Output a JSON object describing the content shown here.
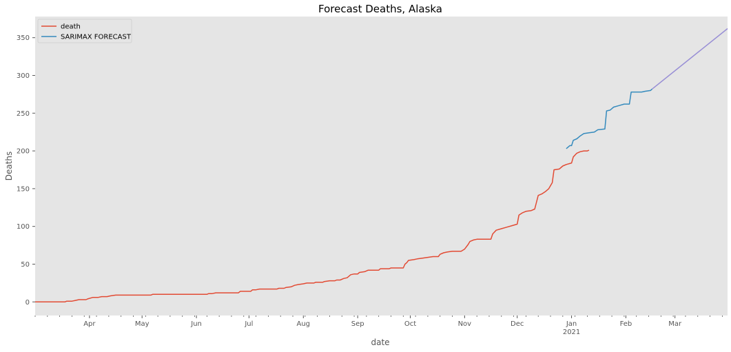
{
  "chart_data": {
    "type": "line",
    "title": "Forecast Deaths, Alaska",
    "xlabel": "date",
    "ylabel": "Deaths",
    "ylim": [
      -18,
      378
    ],
    "xlim": [
      "2020-03-01",
      "2021-03-31"
    ],
    "grid": false,
    "legend_position": "top-left",
    "background_color": "#e5e5e5",
    "y_ticks": [
      0,
      50,
      100,
      150,
      200,
      250,
      300,
      350
    ],
    "x_ticks": [
      {
        "date": "2020-04-01",
        "label": "Apr",
        "sublabel": ""
      },
      {
        "date": "2020-05-01",
        "label": "May",
        "sublabel": ""
      },
      {
        "date": "2020-06-01",
        "label": "Jun",
        "sublabel": ""
      },
      {
        "date": "2020-07-01",
        "label": "Jul",
        "sublabel": ""
      },
      {
        "date": "2020-08-01",
        "label": "Aug",
        "sublabel": ""
      },
      {
        "date": "2020-09-01",
        "label": "Sep",
        "sublabel": ""
      },
      {
        "date": "2020-10-01",
        "label": "Oct",
        "sublabel": ""
      },
      {
        "date": "2020-11-01",
        "label": "Nov",
        "sublabel": ""
      },
      {
        "date": "2020-12-01",
        "label": "Dec",
        "sublabel": ""
      },
      {
        "date": "2021-01-01",
        "label": "Jan",
        "sublabel": "2021"
      },
      {
        "date": "2021-02-01",
        "label": "Feb",
        "sublabel": ""
      },
      {
        "date": "2021-03-01",
        "label": "Mar",
        "sublabel": ""
      }
    ],
    "series": [
      {
        "name": "death",
        "color": "#e24a33",
        "legend": true,
        "points": [
          [
            "2020-03-01",
            0
          ],
          [
            "2020-03-18",
            0
          ],
          [
            "2020-03-19",
            1
          ],
          [
            "2020-03-22",
            1
          ],
          [
            "2020-03-24",
            2
          ],
          [
            "2020-03-26",
            3
          ],
          [
            "2020-03-30",
            3
          ],
          [
            "2020-03-31",
            4
          ],
          [
            "2020-04-03",
            6
          ],
          [
            "2020-04-06",
            6
          ],
          [
            "2020-04-08",
            7
          ],
          [
            "2020-04-11",
            7
          ],
          [
            "2020-04-13",
            8
          ],
          [
            "2020-04-16",
            9
          ],
          [
            "2020-05-06",
            9
          ],
          [
            "2020-05-07",
            10
          ],
          [
            "2020-06-07",
            10
          ],
          [
            "2020-06-08",
            11
          ],
          [
            "2020-06-10",
            11
          ],
          [
            "2020-06-12",
            12
          ],
          [
            "2020-06-25",
            12
          ],
          [
            "2020-06-26",
            14
          ],
          [
            "2020-07-02",
            14
          ],
          [
            "2020-07-03",
            16
          ],
          [
            "2020-07-05",
            16
          ],
          [
            "2020-07-07",
            17
          ],
          [
            "2020-07-17",
            17
          ],
          [
            "2020-07-18",
            18
          ],
          [
            "2020-07-21",
            18
          ],
          [
            "2020-07-22",
            19
          ],
          [
            "2020-07-25",
            20
          ],
          [
            "2020-07-27",
            22
          ],
          [
            "2020-07-29",
            23
          ],
          [
            "2020-08-01",
            24
          ],
          [
            "2020-08-03",
            25
          ],
          [
            "2020-08-07",
            25
          ],
          [
            "2020-08-08",
            26
          ],
          [
            "2020-08-12",
            26
          ],
          [
            "2020-08-13",
            27
          ],
          [
            "2020-08-16",
            28
          ],
          [
            "2020-08-19",
            28
          ],
          [
            "2020-08-20",
            29
          ],
          [
            "2020-08-22",
            29
          ],
          [
            "2020-08-24",
            31
          ],
          [
            "2020-08-26",
            32
          ],
          [
            "2020-08-28",
            36
          ],
          [
            "2020-08-30",
            37
          ],
          [
            "2020-09-01",
            37
          ],
          [
            "2020-09-02",
            39
          ],
          [
            "2020-09-05",
            40
          ],
          [
            "2020-09-07",
            42
          ],
          [
            "2020-09-13",
            42
          ],
          [
            "2020-09-14",
            44
          ],
          [
            "2020-09-19",
            44
          ],
          [
            "2020-09-20",
            45
          ],
          [
            "2020-09-27",
            45
          ],
          [
            "2020-09-28",
            50
          ],
          [
            "2020-09-29",
            52
          ],
          [
            "2020-09-30",
            55
          ],
          [
            "2020-10-03",
            56
          ],
          [
            "2020-10-05",
            57
          ],
          [
            "2020-10-08",
            58
          ],
          [
            "2020-10-11",
            59
          ],
          [
            "2020-10-14",
            60
          ],
          [
            "2020-10-17",
            60
          ],
          [
            "2020-10-18",
            63
          ],
          [
            "2020-10-20",
            65
          ],
          [
            "2020-10-22",
            66
          ],
          [
            "2020-10-25",
            67
          ],
          [
            "2020-10-30",
            67
          ],
          [
            "2020-11-01",
            70
          ],
          [
            "2020-11-03",
            76
          ],
          [
            "2020-11-04",
            80
          ],
          [
            "2020-11-06",
            82
          ],
          [
            "2020-11-08",
            83
          ],
          [
            "2020-11-16",
            83
          ],
          [
            "2020-11-17",
            90
          ],
          [
            "2020-11-19",
            95
          ],
          [
            "2020-11-22",
            97
          ],
          [
            "2020-11-25",
            99
          ],
          [
            "2020-11-28",
            101
          ],
          [
            "2020-12-01",
            103
          ],
          [
            "2020-12-02",
            115
          ],
          [
            "2020-12-04",
            118
          ],
          [
            "2020-12-06",
            120
          ],
          [
            "2020-12-09",
            121
          ],
          [
            "2020-12-11",
            123
          ],
          [
            "2020-12-13",
            141
          ],
          [
            "2020-12-15",
            143
          ],
          [
            "2020-12-17",
            146
          ],
          [
            "2020-12-19",
            150
          ],
          [
            "2020-12-21",
            158
          ],
          [
            "2020-12-22",
            175
          ],
          [
            "2020-12-25",
            176
          ],
          [
            "2020-12-27",
            180
          ],
          [
            "2020-12-29",
            182
          ],
          [
            "2021-01-01",
            184
          ],
          [
            "2021-01-02",
            192
          ],
          [
            "2021-01-04",
            197
          ],
          [
            "2021-01-06",
            199
          ],
          [
            "2021-01-08",
            200
          ],
          [
            "2021-01-10",
            200
          ],
          [
            "2021-01-11",
            201
          ]
        ]
      },
      {
        "name": "SARIMAX FORECAST",
        "color": "#348abd",
        "legend": true,
        "points": [
          [
            "2020-12-29",
            203
          ],
          [
            "2020-12-31",
            207
          ],
          [
            "2021-01-01",
            207
          ],
          [
            "2021-01-02",
            214
          ],
          [
            "2021-01-04",
            216
          ],
          [
            "2021-01-06",
            220
          ],
          [
            "2021-01-08",
            223
          ],
          [
            "2021-01-11",
            224
          ],
          [
            "2021-01-14",
            225
          ],
          [
            "2021-01-16",
            228
          ],
          [
            "2021-01-20",
            229
          ],
          [
            "2021-01-21",
            253
          ],
          [
            "2021-01-23",
            254
          ],
          [
            "2021-01-25",
            258
          ],
          [
            "2021-01-28",
            260
          ],
          [
            "2021-01-31",
            262
          ],
          [
            "2021-02-03",
            262
          ],
          [
            "2021-02-04",
            278
          ],
          [
            "2021-02-08",
            278
          ],
          [
            "2021-02-10",
            278
          ],
          [
            "2021-02-12",
            279
          ],
          [
            "2021-02-15",
            280
          ],
          [
            "2021-02-16",
            282
          ]
        ]
      },
      {
        "name": "",
        "color": "#988ed5",
        "legend": false,
        "points": [
          [
            "2021-02-16",
            282
          ],
          [
            "2021-03-31",
            362
          ]
        ]
      }
    ]
  }
}
